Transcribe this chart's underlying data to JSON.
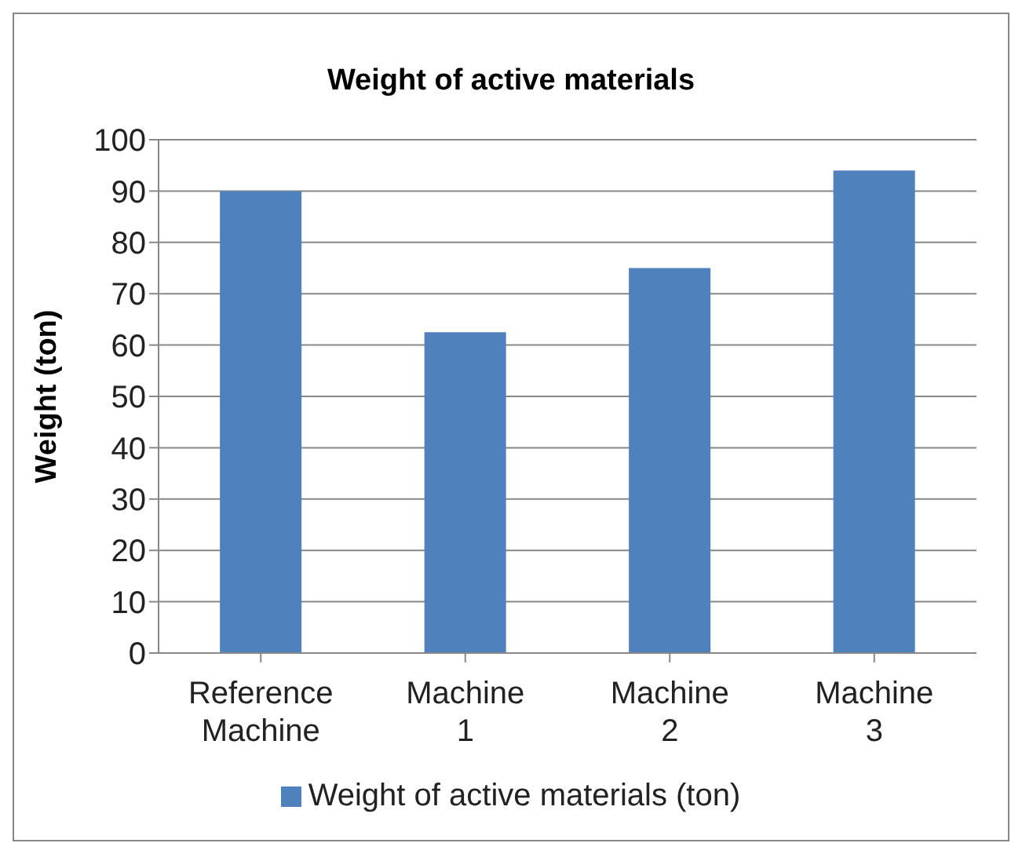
{
  "chart_data": {
    "type": "bar",
    "title": "Weight of active materials",
    "ylabel": "Weight (ton)",
    "categories": [
      "Reference Machine",
      "Machine 1",
      "Machine 2",
      "Machine 3"
    ],
    "series": [
      {
        "name": "Weight of active materials (ton)",
        "color": "#4f81bd",
        "values": [
          90,
          62.5,
          75,
          94
        ]
      }
    ],
    "ylim": [
      0,
      100
    ],
    "yticks": [
      0,
      10,
      20,
      30,
      40,
      50,
      60,
      70,
      80,
      90,
      100
    ],
    "grid": "y",
    "legend": "bottom"
  }
}
